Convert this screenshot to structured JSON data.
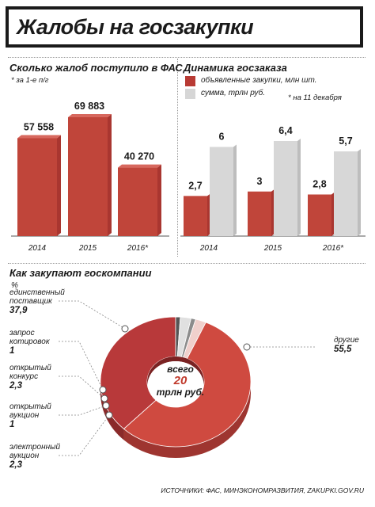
{
  "title": "Жалобы на госзакупки",
  "source": "ИСТОЧНИКИ: ФАС, МИНЭКОНОМРАЗВИТИЯ, ZAKUPKI.GOV.RU",
  "colors": {
    "red": "#c0392b",
    "dark_red": "#a9322f",
    "gray": "#d9d9d9",
    "dark": "#333333"
  },
  "chart_data": [
    {
      "type": "bar",
      "title": "Сколько жалоб поступило в ФАС",
      "note": "* за 1-е п/г",
      "categories": [
        "2014",
        "2015",
        "2016*"
      ],
      "values": [
        57558,
        69883,
        40270
      ],
      "value_labels": [
        "57 558",
        "69 883",
        "40 270"
      ],
      "ylim": [
        0,
        80000
      ]
    },
    {
      "type": "bar",
      "title": "Динамика госзаказа",
      "note": "* на 11 декабря",
      "categories": [
        "2014",
        "2015",
        "2016*"
      ],
      "series": [
        {
          "name": "объявленные закупки, млн шт.",
          "values": [
            2.7,
            3,
            2.8
          ],
          "value_labels": [
            "2,7",
            "3",
            "2,8"
          ]
        },
        {
          "name": "сумма, трлн руб.",
          "values": [
            6,
            6.4,
            5.7
          ],
          "value_labels": [
            "6",
            "6,4",
            "5,7"
          ]
        }
      ],
      "ylim": [
        0,
        7.5
      ]
    },
    {
      "type": "pie",
      "title": "Как закупают госкомпании",
      "unit": "%",
      "center_text": [
        "всего",
        "20",
        "трлн руб."
      ],
      "slices": [
        {
          "label": "единственный поставщик",
          "value": 37.9,
          "value_label": "37,9"
        },
        {
          "label": "запрос котировок",
          "value": 1,
          "value_label": "1"
        },
        {
          "label": "открытый конкурс",
          "value": 2.3,
          "value_label": "2,3"
        },
        {
          "label": "открытый аукцион",
          "value": 1,
          "value_label": "1"
        },
        {
          "label": "электронный аукцион",
          "value": 2.3,
          "value_label": "2,3"
        },
        {
          "label": "другие",
          "value": 55.5,
          "value_label": "55,5"
        }
      ]
    }
  ]
}
